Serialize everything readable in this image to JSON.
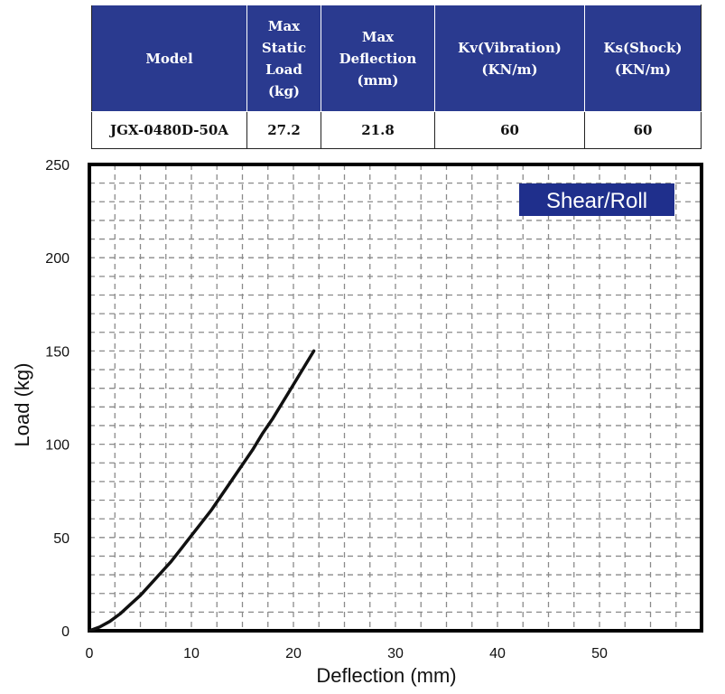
{
  "spec_table": {
    "headers": [
      "Model",
      "Max\nStatic\nLoad\n(kg)",
      "Max\nDeflection\n(mm)",
      "Kv(Vibration)\n(KN/m)",
      "Ks(Shock)\n(KN/m)"
    ],
    "row": [
      "JGX-0480D-50A",
      "27.2",
      "21.8",
      "60",
      "60"
    ],
    "header_color": "#2a3a8f"
  },
  "chart_data": {
    "type": "line",
    "title": "",
    "legend_label": "Shear/Roll",
    "legend_color": "#1f2f8c",
    "legend_position": "top-right",
    "xlabel": "Deflection (mm)",
    "ylabel": "Load (kg)",
    "xlim": [
      0,
      60
    ],
    "ylim": [
      0,
      250
    ],
    "x_ticks": [
      0,
      10,
      20,
      30,
      40,
      50
    ],
    "y_ticks": [
      0,
      50,
      100,
      150,
      200,
      250
    ],
    "grid": true,
    "grid_style": "dashed",
    "series": [
      {
        "line_color": "#111111",
        "x": [
          0,
          1,
          2,
          3,
          4,
          5,
          6,
          7,
          8,
          9,
          10,
          11,
          12,
          13,
          14,
          15,
          16,
          17,
          18,
          19,
          20,
          21,
          22
        ],
        "y": [
          0,
          2,
          5,
          9,
          14,
          19,
          25,
          31,
          37,
          44,
          51,
          58,
          65,
          73,
          81,
          89,
          97,
          106,
          114,
          123,
          132,
          141,
          150
        ]
      }
    ]
  }
}
